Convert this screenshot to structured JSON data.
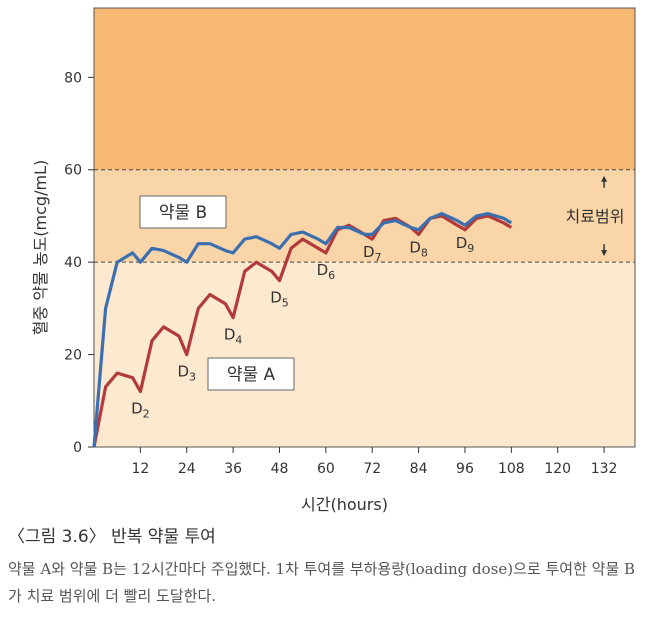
{
  "chart_data": {
    "type": "line",
    "xlabel": "시간(hours)",
    "ylabel": "혈중 약물 농도(mcg/mL)",
    "xlim": [
      0,
      140
    ],
    "ylim": [
      0,
      95
    ],
    "x_ticks": [
      12,
      24,
      36,
      48,
      60,
      72,
      84,
      96,
      108,
      120,
      132
    ],
    "y_ticks": [
      0,
      20,
      40,
      60,
      80
    ],
    "therapeutic_range": {
      "label": "치료범위",
      "min": 40,
      "max": 60
    },
    "series": [
      {
        "name": "약물 A",
        "color": "#b23a3a",
        "dose_times": [
          0,
          12,
          24,
          36,
          48,
          60,
          72,
          84,
          96
        ],
        "x": [
          0,
          3,
          6,
          10,
          12,
          15,
          18,
          22,
          24,
          27,
          30,
          34,
          36,
          39,
          42,
          46,
          48,
          51,
          54,
          58,
          60,
          63,
          66,
          70,
          72,
          75,
          78,
          82,
          84,
          87,
          90,
          94,
          96,
          99,
          102,
          106,
          108
        ],
        "y": [
          0,
          13,
          16,
          15,
          12,
          23,
          26,
          24,
          20,
          30,
          33,
          31,
          28,
          38,
          40,
          38,
          36,
          43,
          45,
          43,
          42,
          47,
          48,
          46,
          45,
          49,
          49.5,
          47.5,
          46,
          49.5,
          50,
          48,
          47,
          49.5,
          50,
          48.5,
          47.5
        ],
        "dose_labels": [
          {
            "text": "D",
            "sub": "2",
            "x": 12,
            "y": 12
          },
          {
            "text": "D",
            "sub": "3",
            "x": 24,
            "y": 20
          },
          {
            "text": "D",
            "sub": "4",
            "x": 36,
            "y": 28
          },
          {
            "text": "D",
            "sub": "5",
            "x": 48,
            "y": 36
          },
          {
            "text": "D",
            "sub": "6",
            "x": 60,
            "y": 42
          },
          {
            "text": "D",
            "sub": "7",
            "x": 72,
            "y": 45
          },
          {
            "text": "D",
            "sub": "8",
            "x": 84,
            "y": 46
          },
          {
            "text": "D",
            "sub": "9",
            "x": 96,
            "y": 47
          }
        ]
      },
      {
        "name": "약물 B",
        "color": "#3b6fb0",
        "dose_times": [
          0,
          12,
          24,
          36,
          48,
          60,
          72,
          84,
          96
        ],
        "x": [
          0,
          3,
          6,
          10,
          12,
          15,
          18,
          22,
          24,
          27,
          30,
          34,
          36,
          39,
          42,
          46,
          48,
          51,
          54,
          58,
          60,
          63,
          66,
          70,
          72,
          75,
          78,
          82,
          84,
          87,
          90,
          94,
          96,
          99,
          102,
          106,
          108
        ],
        "y": [
          0,
          30,
          40,
          42,
          40,
          43,
          42.5,
          41,
          40,
          44,
          44,
          42.5,
          42,
          45,
          45.5,
          44,
          43,
          46,
          46.5,
          45,
          44,
          47.5,
          47.5,
          46,
          46,
          48.5,
          49,
          47.5,
          47,
          49.5,
          50.5,
          49,
          48,
          50,
          50.5,
          49.5,
          48.5
        ]
      }
    ],
    "legend": [
      {
        "label": "약물 B",
        "series": "약물 B"
      },
      {
        "label": "약물 A",
        "series": "약물 A"
      }
    ]
  },
  "caption": {
    "title": "〈그림 3.6〉 반복 약물 투여",
    "body": "약물 A와 약물 B는 12시간마다 주입했다. 1차 투여를 부하용량(loading dose)으로 투여한 약물 B가 치료 범위에 더 빨리 도달한다."
  },
  "colors": {
    "upper_band": "#f7b873",
    "range_band": "#fad5a8",
    "lower_band": "#fde8d0"
  }
}
